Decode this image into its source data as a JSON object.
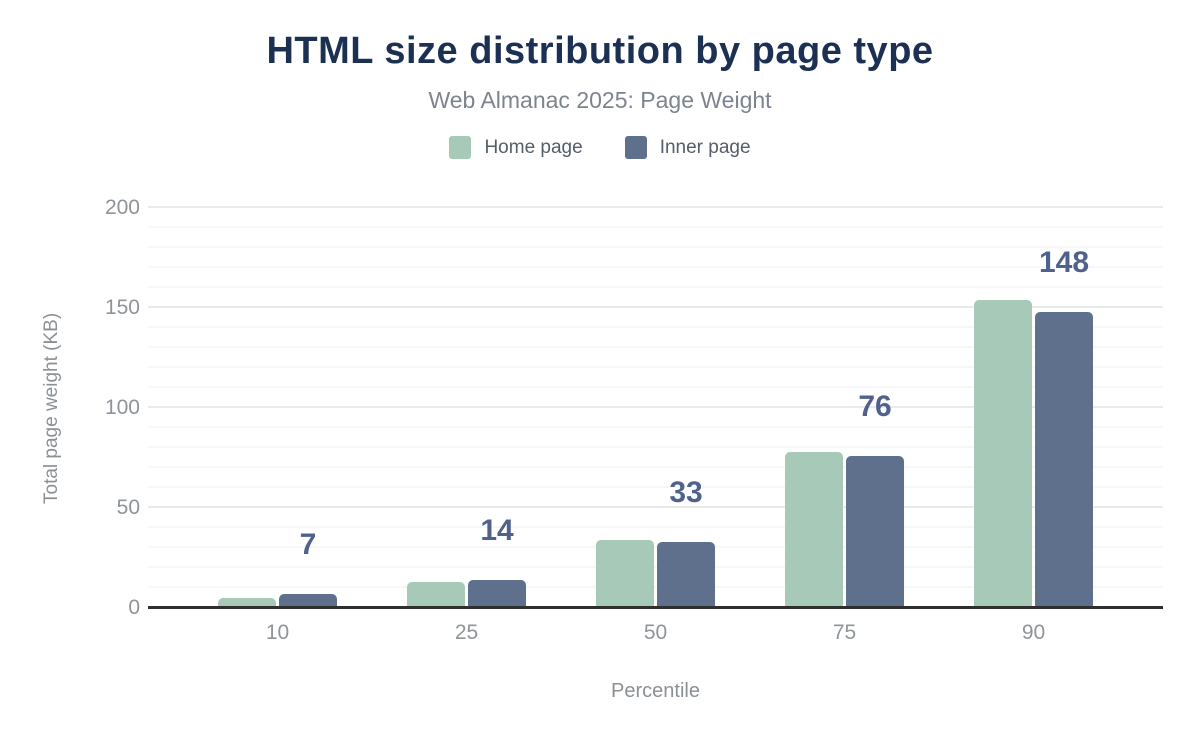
{
  "header": {
    "title": "HTML size distribution by page type",
    "subtitle": "Web Almanac 2025: Page Weight"
  },
  "legend": {
    "items": [
      {
        "label": "Home page",
        "color": "#a6c9b8"
      },
      {
        "label": "Inner page",
        "color": "#5e708c"
      }
    ]
  },
  "chart_data": {
    "type": "bar",
    "title": "HTML size distribution by page type",
    "subtitle": "Web Almanac 2025: Page Weight",
    "categories": [
      "10",
      "25",
      "50",
      "75",
      "90"
    ],
    "series": [
      {
        "name": "Home page",
        "color": "#a6c9b8",
        "values": [
          5,
          13,
          34,
          78,
          154
        ],
        "show_data_labels": false
      },
      {
        "name": "Inner page",
        "color": "#5e708c",
        "values": [
          7,
          14,
          33,
          76,
          148
        ],
        "show_data_labels": true
      }
    ],
    "data_labels": [
      "7",
      "14",
      "33",
      "76",
      "148"
    ],
    "data_label_color": "#4f628b",
    "xlabel": "Percentile",
    "ylabel": "Total page weight (KB)",
    "ylim": [
      0,
      200
    ],
    "yticks": [
      0,
      50,
      100,
      150,
      200
    ],
    "minor_grid_step": 10,
    "major_grid_step": 50,
    "grid": "on",
    "legend_position": "top",
    "axis_line_color": "#2f2f2f",
    "grid_minor_color": "#f6f7f8",
    "grid_major_color": "#eaeaea"
  }
}
